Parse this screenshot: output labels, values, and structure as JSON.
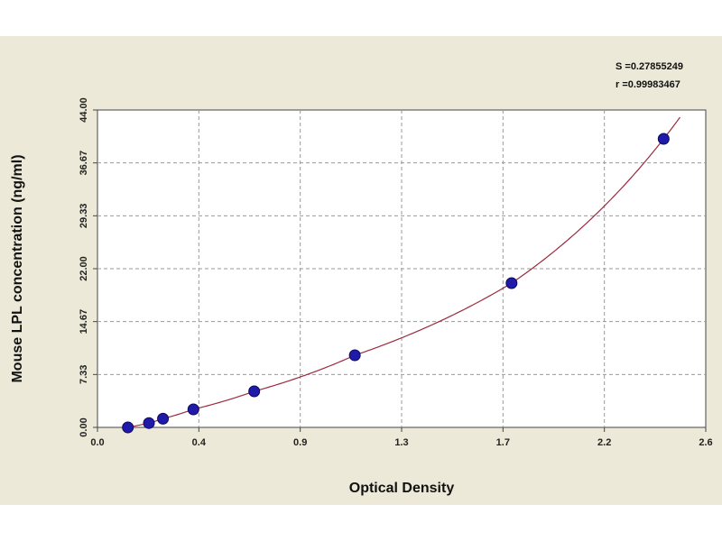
{
  "chart_data": {
    "type": "scatter",
    "xlabel": "Optical Density",
    "ylabel": "Mouse LPL concentration (ng/ml)",
    "xlim": [
      0.0,
      2.6
    ],
    "ylim": [
      0.0,
      44.0
    ],
    "x_ticks": [
      "0.0",
      "0.4",
      "0.9",
      "1.3",
      "1.7",
      "2.2",
      "2.6"
    ],
    "y_ticks": [
      "0.00",
      "7.33",
      "14.67",
      "22.00",
      "29.33",
      "36.67",
      "44.00"
    ],
    "grid": true,
    "stats": [
      "S =0.27855249",
      "r =0.99983467"
    ],
    "points": [
      {
        "x": 0.13,
        "y": 0.0
      },
      {
        "x": 0.22,
        "y": 0.6
      },
      {
        "x": 0.28,
        "y": 1.2
      },
      {
        "x": 0.41,
        "y": 2.5
      },
      {
        "x": 0.67,
        "y": 5.0
      },
      {
        "x": 1.1,
        "y": 10.0
      },
      {
        "x": 1.77,
        "y": 20.0
      },
      {
        "x": 2.42,
        "y": 40.0
      }
    ],
    "curve_color": "#9b2a3c",
    "point_color": "#1f1aa8"
  }
}
